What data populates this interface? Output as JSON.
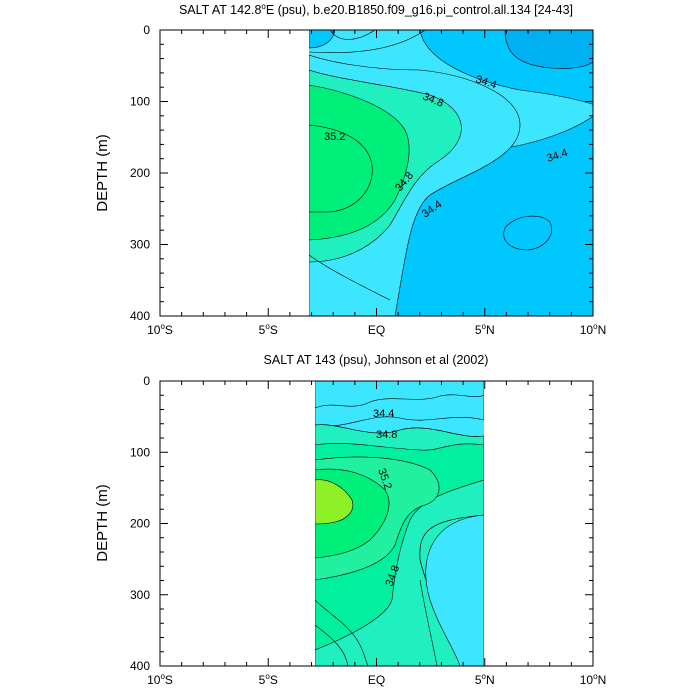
{
  "chart_data": [
    {
      "type": "contour",
      "title": "SALT AT 142.8°E (psu), b.e20.B1850.f09_g16.pi_control.all.134 [24-43]",
      "title_parts": {
        "pre": "SALT AT 142.8",
        "deg": "o",
        "post": "E (psu), b.e20.B1850.f09_g16.pi_control.all.134 [24-43]"
      },
      "ylabel": "DEPTH (m)",
      "xlim": [
        -10,
        10
      ],
      "ylim": [
        400,
        0
      ],
      "data_xrange": [
        -3.2,
        10
      ],
      "xticks": [
        {
          "v": -10,
          "n": "10",
          "d": "o",
          "h": "S"
        },
        {
          "v": -5,
          "n": "5",
          "d": "o",
          "h": "S"
        },
        {
          "v": 0,
          "n": "EQ",
          "d": "",
          "h": ""
        },
        {
          "v": 5,
          "n": "5",
          "d": "o",
          "h": "N"
        },
        {
          "v": 10,
          "n": "10",
          "d": "o",
          "h": "N"
        }
      ],
      "yticks": [
        "0",
        "100",
        "200",
        "300",
        "400"
      ],
      "contour_labels": [
        {
          "text": "34.4",
          "x": 4.2,
          "y": 68
        },
        {
          "text": "34.8",
          "x": 2.6,
          "y": 98
        },
        {
          "text": "35.2",
          "x": -1.8,
          "y": 150
        },
        {
          "text": "34.8",
          "x": 1.7,
          "y": 218
        },
        {
          "text": "34.4",
          "x": 2.8,
          "y": 250
        },
        {
          "text": "34.4",
          "x": 8.5,
          "y": 165
        }
      ]
    },
    {
      "type": "contour",
      "title": "SALT AT 143 (psu), Johnson et al (2002)",
      "ylabel": "DEPTH (m)",
      "xlim": [
        -10,
        10
      ],
      "ylim": [
        400,
        0
      ],
      "data_xrange": [
        -2.8,
        5
      ],
      "xticks": [
        {
          "v": -10,
          "n": "10",
          "d": "o",
          "h": "S"
        },
        {
          "v": -5,
          "n": "5",
          "d": "o",
          "h": "S"
        },
        {
          "v": 0,
          "n": "EQ",
          "d": "",
          "h": ""
        },
        {
          "v": 5,
          "n": "5",
          "d": "o",
          "h": "N"
        },
        {
          "v": 10,
          "n": "10",
          "d": "o",
          "h": "N"
        }
      ],
      "yticks": [
        "0",
        "100",
        "200",
        "300",
        "400"
      ],
      "contour_labels": [
        {
          "text": "34.4",
          "x": 0.4,
          "y": 48
        },
        {
          "text": "34.8",
          "x": 0.5,
          "y": 76
        },
        {
          "text": "35.2",
          "x": 0.4,
          "y": 140
        },
        {
          "text": "34.8",
          "x": 0.8,
          "y": 285
        }
      ]
    }
  ],
  "colors": {
    "c1": "#00C8FF",
    "c2": "#3CE6FF",
    "c3": "#20F0C0",
    "c4": "#00EE7A",
    "c5": "#90F028"
  }
}
